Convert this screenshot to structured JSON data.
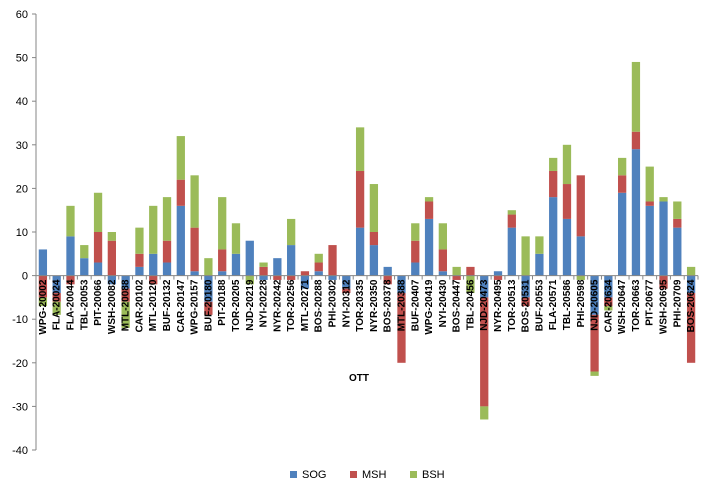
{
  "chart_data": {
    "type": "bar",
    "stacked": true,
    "title": "",
    "xlabel": "OTT",
    "ylabel": "",
    "ylim": [
      -40,
      60
    ],
    "ytick_step": 10,
    "grid": false,
    "legend_position": "bottom",
    "categories": [
      "WPG-20002",
      "FLA-20024",
      "FLA-20044",
      "TBL-20053",
      "PIT-20066",
      "WSH-20082",
      "MTL-20088",
      "CAR-20102",
      "MTL-20120",
      "BUF-20132",
      "CAR-20147",
      "WPG-20157",
      "BUF-20180",
      "PIT-20188",
      "TOR-20205",
      "NJD-20219",
      "NYI-20228",
      "NYR-20242",
      "TOR-20256",
      "MTL-20271",
      "BOS-20288",
      "PHI-20302",
      "NYI-20312",
      "TOR-20335",
      "NYR-20350",
      "BOS-20378",
      "MTL-20388",
      "BUF-20407",
      "WPG-20419",
      "NYI-20430",
      "BOS-20447",
      "TBL-20456",
      "NJD-20473",
      "NYR-20495",
      "TOR-20513",
      "BOS-20531",
      "BUF-20553",
      "FLA-20571",
      "TBL-20586",
      "PHI-20598",
      "NJD-20605",
      "CAR-20634",
      "WSH-20647",
      "TOR-20663",
      "PIT-20677",
      "WSH-20695",
      "PHI-20709",
      "BOS-20624"
    ],
    "series": [
      {
        "name": "SOG",
        "color": "#4f81bd",
        "values": [
          6,
          -4,
          9,
          4,
          3,
          -2,
          -3,
          2,
          5,
          3,
          16,
          1,
          -6,
          1,
          5,
          8,
          -1,
          4,
          7,
          -3,
          1,
          -1,
          -3,
          11,
          7,
          2,
          -4,
          3,
          13,
          1,
          0,
          0,
          -5,
          1,
          11,
          -5,
          5,
          18,
          13,
          9,
          -9,
          -5,
          19,
          29,
          16,
          17,
          11,
          -4
        ]
      },
      {
        "name": "MSH",
        "color": "#c0504d",
        "values": [
          -5,
          -2,
          -2,
          0,
          7,
          8,
          -3,
          3,
          -2,
          5,
          6,
          10,
          -3,
          5,
          0,
          0,
          2,
          -1,
          -1,
          1,
          2,
          7,
          -1,
          13,
          3,
          -2,
          -16,
          5,
          4,
          5,
          -1,
          2,
          -25,
          -1,
          3,
          -2,
          0,
          6,
          8,
          14,
          -13,
          -2,
          4,
          4,
          1,
          -3,
          2,
          -16
        ]
      },
      {
        "name": "BSH",
        "color": "#9bbb59",
        "values": [
          -2,
          -3,
          7,
          3,
          9,
          2,
          -6,
          6,
          11,
          10,
          10,
          12,
          4,
          12,
          7,
          -2,
          1,
          0,
          6,
          0,
          2,
          0,
          0,
          10,
          11,
          0,
          0,
          4,
          1,
          6,
          2,
          -4,
          -3,
          0,
          1,
          9,
          4,
          3,
          9,
          -1,
          -1,
          -1,
          4,
          16,
          8,
          1,
          4,
          2
        ]
      }
    ]
  }
}
